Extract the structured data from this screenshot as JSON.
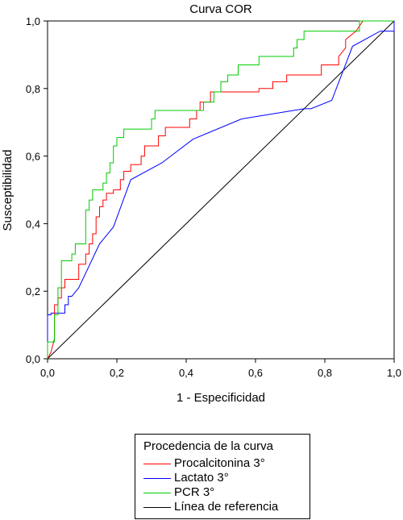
{
  "chart_data": {
    "type": "line",
    "title": "Curva COR",
    "xlabel": "1 - Especificidad",
    "ylabel": "Susceptibilidad",
    "xlim": [
      0,
      1
    ],
    "ylim": [
      0,
      1
    ],
    "xticks": [
      "0,0",
      "0,2",
      "0,4",
      "0,6",
      "0,8",
      "1,0"
    ],
    "yticks": [
      "0,0",
      "0,2",
      "0,4",
      "0,6",
      "0,8",
      "1,0"
    ],
    "grid": false,
    "legend": {
      "title": "Procedencia de la curva",
      "placement": "bottom-center"
    },
    "series": [
      {
        "name": "Procalcitonina 3°",
        "color": "#ff0000",
        "points": [
          [
            0,
            0
          ],
          [
            0.01,
            0.02
          ],
          [
            0.02,
            0.06
          ],
          [
            0.02,
            0.16
          ],
          [
            0.03,
            0.16
          ],
          [
            0.03,
            0.18
          ],
          [
            0.04,
            0.18
          ],
          [
            0.04,
            0.21
          ],
          [
            0.05,
            0.21
          ],
          [
            0.05,
            0.235
          ],
          [
            0.09,
            0.235
          ],
          [
            0.09,
            0.28
          ],
          [
            0.11,
            0.28
          ],
          [
            0.11,
            0.31
          ],
          [
            0.12,
            0.31
          ],
          [
            0.12,
            0.34
          ],
          [
            0.13,
            0.34
          ],
          [
            0.13,
            0.37
          ],
          [
            0.14,
            0.37
          ],
          [
            0.14,
            0.42
          ],
          [
            0.15,
            0.42
          ],
          [
            0.15,
            0.45
          ],
          [
            0.16,
            0.45
          ],
          [
            0.16,
            0.47
          ],
          [
            0.17,
            0.47
          ],
          [
            0.17,
            0.49
          ],
          [
            0.19,
            0.49
          ],
          [
            0.19,
            0.5
          ],
          [
            0.21,
            0.5
          ],
          [
            0.21,
            0.53
          ],
          [
            0.22,
            0.53
          ],
          [
            0.22,
            0.555
          ],
          [
            0.24,
            0.555
          ],
          [
            0.24,
            0.575
          ],
          [
            0.27,
            0.575
          ],
          [
            0.27,
            0.6
          ],
          [
            0.28,
            0.6
          ],
          [
            0.28,
            0.63
          ],
          [
            0.32,
            0.63
          ],
          [
            0.32,
            0.66
          ],
          [
            0.34,
            0.66
          ],
          [
            0.34,
            0.685
          ],
          [
            0.41,
            0.685
          ],
          [
            0.41,
            0.71
          ],
          [
            0.43,
            0.71
          ],
          [
            0.43,
            0.735
          ],
          [
            0.44,
            0.735
          ],
          [
            0.44,
            0.76
          ],
          [
            0.47,
            0.76
          ],
          [
            0.47,
            0.79
          ],
          [
            0.61,
            0.79
          ],
          [
            0.61,
            0.8
          ],
          [
            0.65,
            0.8
          ],
          [
            0.65,
            0.82
          ],
          [
            0.69,
            0.82
          ],
          [
            0.69,
            0.84
          ],
          [
            0.79,
            0.84
          ],
          [
            0.79,
            0.87
          ],
          [
            0.84,
            0.87
          ],
          [
            0.84,
            0.895
          ],
          [
            0.86,
            0.92
          ],
          [
            0.86,
            0.945
          ],
          [
            0.89,
            0.97
          ],
          [
            0.91,
            1.0
          ],
          [
            1.0,
            1.0
          ]
        ]
      },
      {
        "name": "Lactato 3°",
        "color": "#0000ff",
        "points": [
          [
            0,
            0
          ],
          [
            0,
            0.13
          ],
          [
            0.01,
            0.13
          ],
          [
            0.01,
            0.135
          ],
          [
            0.05,
            0.135
          ],
          [
            0.05,
            0.16
          ],
          [
            0.06,
            0.16
          ],
          [
            0.06,
            0.185
          ],
          [
            0.07,
            0.185
          ],
          [
            0.09,
            0.21
          ],
          [
            0.15,
            0.34
          ],
          [
            0.19,
            0.39
          ],
          [
            0.24,
            0.53
          ],
          [
            0.33,
            0.58
          ],
          [
            0.42,
            0.65
          ],
          [
            0.56,
            0.71
          ],
          [
            0.74,
            0.74
          ],
          [
            0.76,
            0.74
          ],
          [
            0.82,
            0.765
          ],
          [
            0.88,
            0.925
          ],
          [
            0.96,
            0.97
          ],
          [
            1.0,
            0.97
          ],
          [
            1.0,
            1.0
          ]
        ]
      },
      {
        "name": "PCR 3°",
        "color": "#00cc00",
        "points": [
          [
            0,
            0
          ],
          [
            0,
            0.05
          ],
          [
            0.02,
            0.05
          ],
          [
            0.02,
            0.13
          ],
          [
            0.03,
            0.13
          ],
          [
            0.03,
            0.21
          ],
          [
            0.04,
            0.21
          ],
          [
            0.04,
            0.29
          ],
          [
            0.07,
            0.29
          ],
          [
            0.07,
            0.31
          ],
          [
            0.08,
            0.31
          ],
          [
            0.08,
            0.34
          ],
          [
            0.11,
            0.34
          ],
          [
            0.11,
            0.44
          ],
          [
            0.12,
            0.44
          ],
          [
            0.12,
            0.47
          ],
          [
            0.13,
            0.47
          ],
          [
            0.13,
            0.5
          ],
          [
            0.16,
            0.5
          ],
          [
            0.16,
            0.52
          ],
          [
            0.17,
            0.52
          ],
          [
            0.17,
            0.55
          ],
          [
            0.18,
            0.55
          ],
          [
            0.18,
            0.58
          ],
          [
            0.19,
            0.58
          ],
          [
            0.19,
            0.63
          ],
          [
            0.2,
            0.63
          ],
          [
            0.2,
            0.655
          ],
          [
            0.22,
            0.655
          ],
          [
            0.22,
            0.68
          ],
          [
            0.3,
            0.68
          ],
          [
            0.3,
            0.71
          ],
          [
            0.31,
            0.71
          ],
          [
            0.31,
            0.735
          ],
          [
            0.45,
            0.735
          ],
          [
            0.45,
            0.76
          ],
          [
            0.48,
            0.76
          ],
          [
            0.48,
            0.79
          ],
          [
            0.5,
            0.79
          ],
          [
            0.5,
            0.82
          ],
          [
            0.52,
            0.82
          ],
          [
            0.52,
            0.84
          ],
          [
            0.55,
            0.84
          ],
          [
            0.55,
            0.87
          ],
          [
            0.61,
            0.87
          ],
          [
            0.61,
            0.895
          ],
          [
            0.71,
            0.895
          ],
          [
            0.71,
            0.92
          ],
          [
            0.72,
            0.92
          ],
          [
            0.72,
            0.945
          ],
          [
            0.74,
            0.945
          ],
          [
            0.74,
            0.97
          ],
          [
            0.9,
            0.97
          ],
          [
            0.9,
            1.0
          ],
          [
            1.0,
            1.0
          ]
        ]
      },
      {
        "name": "Línea de referencia",
        "color": "#000000",
        "points": [
          [
            0,
            0
          ],
          [
            1,
            1
          ]
        ]
      }
    ]
  }
}
